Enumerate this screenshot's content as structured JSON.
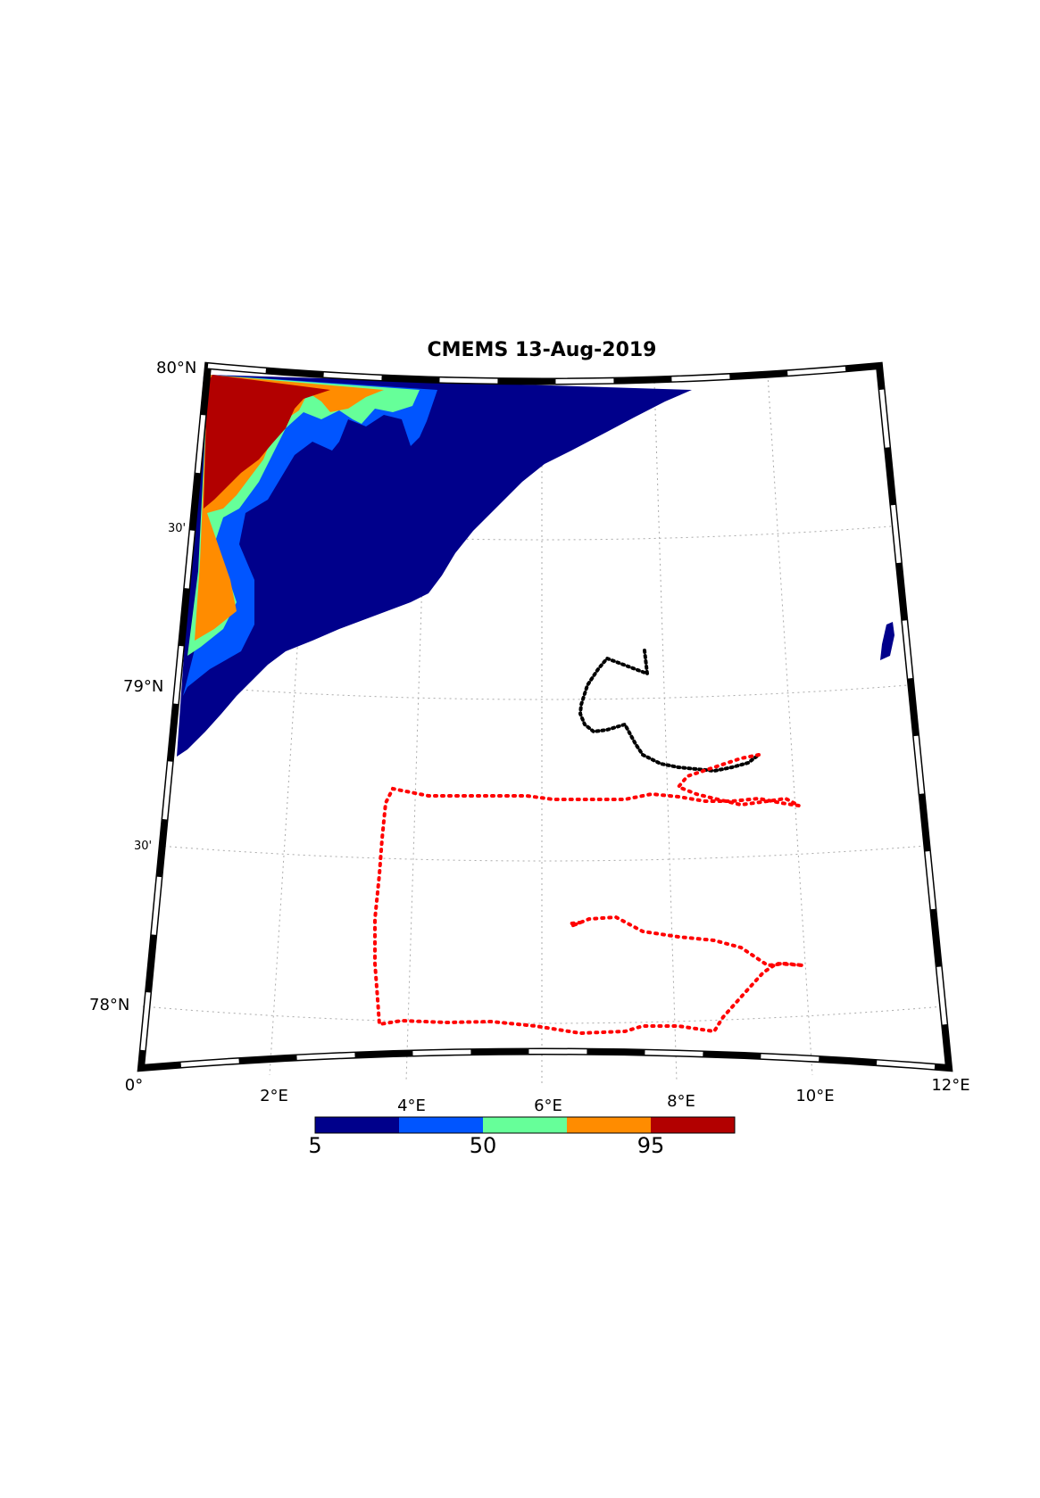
{
  "title": "CMEMS 13-Aug-2019",
  "latitude_labels": [
    "80°N",
    "30'",
    "79°N",
    "30'",
    "78°N"
  ],
  "longitude_labels": [
    "0°",
    "2°E",
    "4°E",
    "6°E",
    "8°E",
    "10°E",
    "12°E"
  ],
  "colorbar": {
    "tick_labels": [
      "5",
      "50",
      "95"
    ],
    "colors": [
      "#00008b",
      "#0055ff",
      "#66ff99",
      "#ff8c00",
      "#b20000"
    ]
  },
  "colors": {
    "black_track": "#000000",
    "red_track": "#ff0000",
    "graticule": "#aaaaaa"
  }
}
